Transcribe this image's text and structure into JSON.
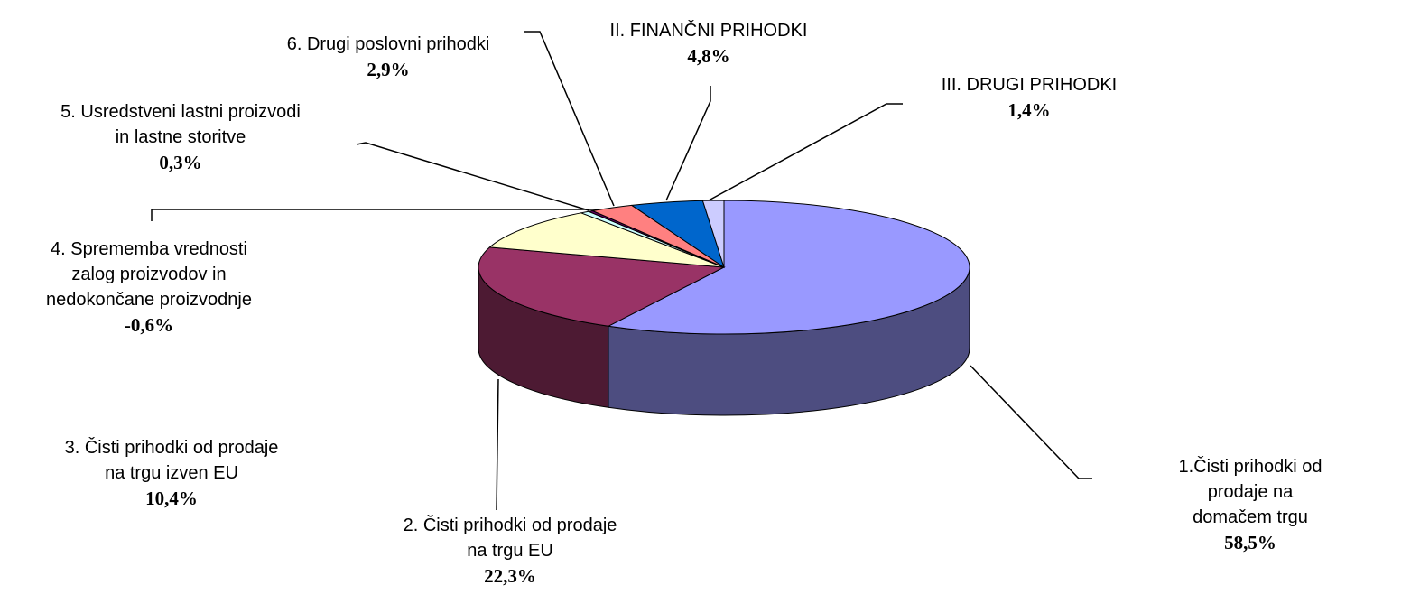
{
  "chart_data": {
    "type": "pie3d",
    "categories": [
      "1.Čisti prihodki od prodaje na\ndomačem trgu",
      "2. Čisti prihodki od prodaje\nna trgu EU",
      "3. Čisti prihodki od prodaje\nna trgu izven EU",
      "4. Sprememba vrednosti\nzalog proizvodov in\nnedokončane proizvodnje",
      "5. Usredstveni lastni proizvodi\nin lastne storitve",
      "6. Drugi poslovni prihodki",
      "II. FINANČNI PRIHODKI",
      "III. DRUGI PRIHODKI"
    ],
    "values": [
      58.5,
      22.3,
      10.4,
      -0.6,
      0.3,
      2.9,
      4.8,
      1.4
    ],
    "value_labels": [
      "58,5%",
      "22,3%",
      "10,4%",
      "-0,6%",
      "0,3%",
      "2,9%",
      "4,8%",
      "1,4%"
    ],
    "colors": [
      "#9999ff",
      "#993366",
      "#ffffcc",
      "#ccffff",
      "#660066",
      "#ff8080",
      "#0066cc",
      "#ccccff"
    ]
  }
}
